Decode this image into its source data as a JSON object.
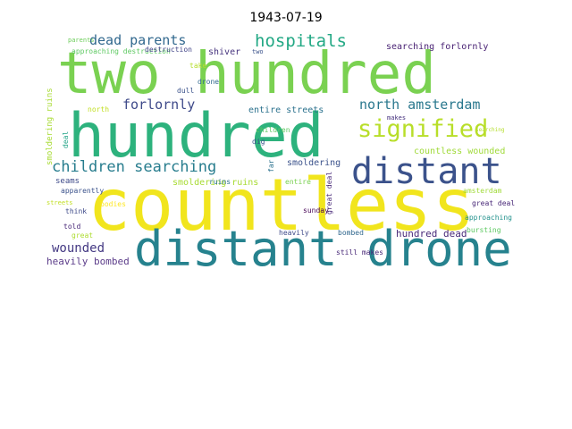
{
  "title": "1943-07-19",
  "words": [
    {
      "text": "two hundred",
      "color": "#7ad151"
    },
    {
      "text": "hundred",
      "color": "#2db27d"
    },
    {
      "text": "countless",
      "color": "#f1e51d"
    },
    {
      "text": "distant drone",
      "color": "#26828e"
    },
    {
      "text": "distant",
      "color": "#3b528b"
    },
    {
      "text": "signified",
      "color": "#b8de29"
    },
    {
      "text": "hospitals",
      "color": "#22a884"
    },
    {
      "text": "dead parents",
      "color": "#31688e"
    },
    {
      "text": "children searching",
      "color": "#287d8e"
    },
    {
      "text": "north amsterdam",
      "color": "#2a788e"
    },
    {
      "text": "forlornly",
      "color": "#3e4989"
    },
    {
      "text": "wounded",
      "color": "#443983"
    },
    {
      "text": "searching forlornly",
      "color": "#482173"
    },
    {
      "text": "countless wounded",
      "color": "#a0da39"
    },
    {
      "text": "hundred dead",
      "color": "#482878"
    },
    {
      "text": "heavily bombed",
      "color": "#5c3d8a"
    },
    {
      "text": "shiver",
      "color": "#46337e"
    },
    {
      "text": "smoldering",
      "color": "#3b528b"
    },
    {
      "text": "entire streets",
      "color": "#2c728e"
    },
    {
      "text": "smoldering ruins",
      "color": "#a8db34"
    },
    {
      "text": "seams",
      "color": "#3e4a89"
    },
    {
      "text": "approaching destruction",
      "color": "#5ec962"
    },
    {
      "text": "destruction",
      "color": "#414487"
    },
    {
      "text": "parents",
      "color": "#6ccd5a"
    },
    {
      "text": "two",
      "color": "#3b528b"
    },
    {
      "text": "take",
      "color": "#b5de2b"
    },
    {
      "text": "drone",
      "color": "#31688e"
    },
    {
      "text": "dull",
      "color": "#3b528b"
    },
    {
      "text": "north",
      "color": "#c2df23"
    },
    {
      "text": "makes",
      "color": "#46327e"
    },
    {
      "text": "children",
      "color": "#5ec962"
    },
    {
      "text": "dig",
      "color": "#3b528b"
    },
    {
      "text": "far",
      "color": "#2c728e"
    },
    {
      "text": "entire",
      "color": "#7ad151"
    },
    {
      "text": "ruins",
      "color": "#2c728e"
    },
    {
      "text": "sunday",
      "color": "#440154"
    },
    {
      "text": "heavily",
      "color": "#3e4a89"
    },
    {
      "text": "bombed",
      "color": "#31688e"
    },
    {
      "text": "amsterdam",
      "color": "#a0da39"
    },
    {
      "text": "great deal",
      "color": "#482878"
    },
    {
      "text": "approaching",
      "color": "#21918c"
    },
    {
      "text": "bursting",
      "color": "#5ec962"
    },
    {
      "text": "still makes",
      "color": "#482878"
    },
    {
      "text": "apparently",
      "color": "#3b528b"
    },
    {
      "text": "streets",
      "color": "#c2df23"
    },
    {
      "text": "think",
      "color": "#3e4a89"
    },
    {
      "text": "bodies",
      "color": "#fde725"
    },
    {
      "text": "told",
      "color": "#482878"
    },
    {
      "text": "great",
      "color": "#addc30"
    },
    {
      "text": "dead",
      "color": "#3e4a89"
    },
    {
      "text": "deal",
      "color": "#20a386"
    },
    {
      "text": "searching",
      "color": "#b5de2b"
    },
    {
      "text": "still",
      "color": "#90d743"
    }
  ]
}
